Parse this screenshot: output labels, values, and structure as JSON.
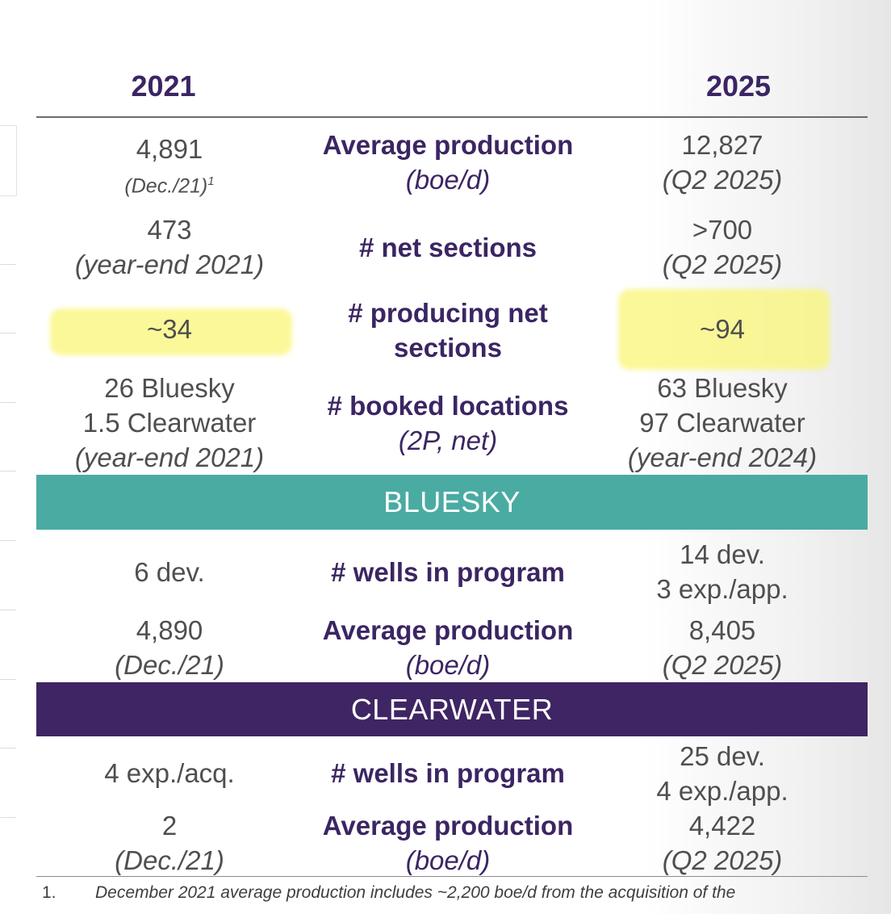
{
  "header": {
    "left_year": "2021",
    "right_year": "2025"
  },
  "rows": [
    {
      "label": "Average production",
      "label_sub": "(boe/d)",
      "left_value": "4,891",
      "left_note": "(Dec./21)",
      "left_note_sup": "1",
      "right_value": "12,827",
      "right_note": "(Q2 2025)"
    },
    {
      "label": "# net sections",
      "left_value": "473",
      "left_note": "(year-end 2021)",
      "right_value": ">700",
      "right_note": "(Q2 2025)"
    },
    {
      "label_line1": "# producing net",
      "label_line2": "sections",
      "left_value": "~34",
      "right_value": "~94"
    },
    {
      "label": "# booked locations",
      "label_sub": "(2P, net)",
      "left_line1": "26 Bluesky",
      "left_line2": "1.5 Clearwater",
      "left_note": "(year-end 2021)",
      "right_line1": "63 Bluesky",
      "right_line2": "97 Clearwater",
      "right_note": "(year-end 2024)"
    }
  ],
  "bluesky": {
    "title": "BLUESKY",
    "color": "#4aaba3",
    "rows": [
      {
        "label": "# wells in program",
        "left_value": "6 dev.",
        "right_line1": "14 dev.",
        "right_line2": "3 exp./app."
      },
      {
        "label": "Average production",
        "label_sub": "(boe/d)",
        "left_value": "4,890",
        "left_note": "(Dec./21)",
        "right_value": "8,405",
        "right_note": "(Q2 2025)"
      }
    ]
  },
  "clearwater": {
    "title": "CLEARWATER",
    "color": "#3f2563",
    "rows": [
      {
        "label": "# wells in program",
        "left_value": "4 exp./acq.",
        "right_line1": "25 dev.",
        "right_line2": "4 exp./app."
      },
      {
        "label": "Average production",
        "label_sub": "(boe/d)",
        "left_value": "2",
        "left_note": "(Dec./21)",
        "right_value": "4,422",
        "right_note": "(Q2 2025)"
      }
    ]
  },
  "footnote": {
    "number": "1.",
    "text": "December 2021 average production includes ~2,200 boe/d from the acquisition of the"
  },
  "colors": {
    "heading": "#3b2563",
    "highlight": "#faf578"
  }
}
